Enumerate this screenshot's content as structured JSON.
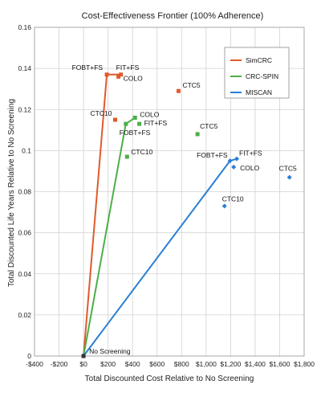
{
  "chart_data": {
    "type": "scatter",
    "title": "Cost-Effectiveness Frontier (100% Adherence)",
    "xlabel": "Total Discounted Cost Relative to No Screening",
    "ylabel": "Total Discounted Life Years Relative to No Screening",
    "xlim": [
      -400,
      1800
    ],
    "ylim": [
      0,
      0.16
    ],
    "x_ticks": [
      -400,
      -200,
      0,
      200,
      400,
      600,
      800,
      1000,
      1200,
      1400,
      1600,
      1800
    ],
    "x_tick_labels": [
      "-$400",
      "-$200",
      "$0",
      "$200",
      "$400",
      "$600",
      "$800",
      "$1,000",
      "$1,200",
      "$1,400",
      "$1,600",
      "$1,800"
    ],
    "y_ticks": [
      0,
      0.02,
      0.04,
      0.06,
      0.08,
      0.1,
      0.12,
      0.14,
      0.16
    ],
    "y_tick_labels": [
      "0",
      "0.02",
      "0.04",
      "0.06",
      "0.08",
      "0.1",
      "0.12",
      "0.14",
      "0.16"
    ],
    "grid": true,
    "legend_position": "top-right",
    "origin_label": "No Screening",
    "series": [
      {
        "name": "SimCRC",
        "color": "#e05a2b",
        "marker": "square",
        "frontier": [
          [
            0,
            0
          ],
          [
            190,
            0.137
          ],
          [
            305,
            0.137
          ]
        ],
        "points": [
          {
            "x": 190,
            "y": 0.137,
            "label": "FOBT+FS"
          },
          {
            "x": 305,
            "y": 0.137,
            "label": "FIT+FS"
          },
          {
            "x": 285,
            "y": 0.136,
            "label": "COLO"
          },
          {
            "x": 258,
            "y": 0.115,
            "label": "CTC10"
          },
          {
            "x": 775,
            "y": 0.129,
            "label": "CTC5"
          }
        ]
      },
      {
        "name": "CRC-SPIN",
        "color": "#4caf48",
        "marker": "square",
        "frontier": [
          [
            0,
            0
          ],
          [
            345,
            0.113
          ],
          [
            420,
            0.116
          ]
        ],
        "points": [
          {
            "x": 345,
            "y": 0.113,
            "label": "FOBT+FS"
          },
          {
            "x": 420,
            "y": 0.116,
            "label": "COLO"
          },
          {
            "x": 455,
            "y": 0.113,
            "label": "FIT+FS"
          },
          {
            "x": 355,
            "y": 0.097,
            "label": "CTC10"
          },
          {
            "x": 930,
            "y": 0.108,
            "label": "CTC5"
          }
        ]
      },
      {
        "name": "MISCAN",
        "color": "#2a7fd4",
        "marker": "diamond",
        "frontier": [
          [
            0,
            0
          ],
          [
            1195,
            0.095
          ],
          [
            1250,
            0.096
          ]
        ],
        "points": [
          {
            "x": 1195,
            "y": 0.095,
            "label": "FOBT+FS"
          },
          {
            "x": 1250,
            "y": 0.096,
            "label": "FIT+FS"
          },
          {
            "x": 1225,
            "y": 0.092,
            "label": "COLO"
          },
          {
            "x": 1150,
            "y": 0.073,
            "label": "CTC10"
          },
          {
            "x": 1680,
            "y": 0.087,
            "label": "CTC5"
          }
        ]
      }
    ]
  }
}
